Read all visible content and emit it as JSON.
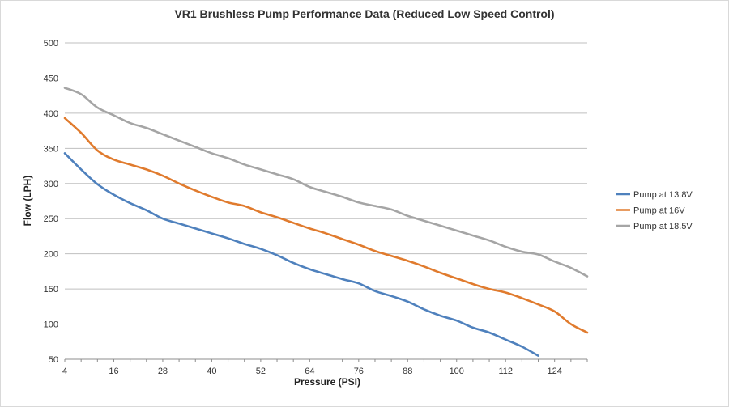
{
  "chart_data": {
    "type": "line",
    "title": "VR1 Brushless Pump Performance Data (Reduced Low Speed  Control)",
    "xlabel": "Pressure (PSI)",
    "ylabel": "Flow (LPH)",
    "x_ticks": [
      "4",
      "16",
      "28",
      "40",
      "52",
      "64",
      "76",
      "88",
      "100",
      "112",
      "124"
    ],
    "y_ticks": [
      "50",
      "100",
      "150",
      "200",
      "250",
      "300",
      "350",
      "400",
      "450",
      "500"
    ],
    "xlim": [
      4,
      132
    ],
    "ylim": [
      50,
      500
    ],
    "grid": true,
    "legend_position": "right",
    "x": [
      4,
      8,
      12,
      16,
      20,
      24,
      28,
      32,
      36,
      40,
      44,
      48,
      52,
      56,
      60,
      64,
      68,
      72,
      76,
      80,
      84,
      88,
      92,
      96,
      100,
      104,
      108,
      112,
      116,
      120,
      124,
      128,
      132
    ],
    "series": [
      {
        "name": "Pump at 13.8V",
        "color": "#4f81bd",
        "values": [
          343,
          320,
          299,
          284,
          272,
          262,
          250,
          243,
          236,
          229,
          222,
          214,
          207,
          198,
          187,
          178,
          171,
          164,
          158,
          147,
          140,
          132,
          121,
          112,
          105,
          95,
          88,
          78,
          68,
          55,
          null,
          null,
          null
        ]
      },
      {
        "name": "Pump at 16V",
        "color": "#e07b2e",
        "values": [
          393,
          372,
          347,
          334,
          327,
          320,
          311,
          300,
          290,
          281,
          273,
          268,
          259,
          252,
          244,
          236,
          229,
          221,
          213,
          204,
          197,
          190,
          182,
          173,
          165,
          157,
          150,
          145,
          137,
          128,
          118,
          100,
          88
        ]
      },
      {
        "name": "Pump at 18.5V",
        "color": "#a5a5a5",
        "values": [
          436,
          427,
          408,
          397,
          386,
          379,
          370,
          361,
          352,
          343,
          336,
          327,
          320,
          313,
          306,
          295,
          288,
          281,
          273,
          268,
          263,
          254,
          247,
          240,
          233,
          226,
          219,
          210,
          203,
          199,
          189,
          180,
          168
        ]
      }
    ]
  }
}
